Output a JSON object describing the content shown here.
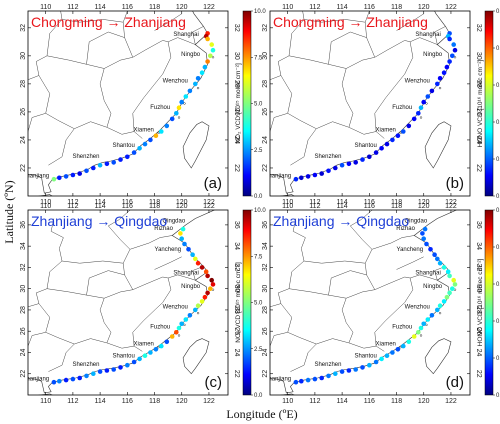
{
  "figure": {
    "xlabel": "Longitude (ºE)",
    "ylabel": "Latitude (ºN)"
  },
  "chart_data": [
    {
      "id": "a",
      "type": "map-scatter",
      "panel_label": "(a)",
      "route": {
        "from": "Chongming",
        "arrow": "→",
        "to": "Zhanjiang",
        "color": "#e8161b"
      },
      "x_ticks": [
        110,
        112,
        114,
        116,
        118,
        120,
        122
      ],
      "y_ticks": [
        22,
        24,
        26,
        28,
        30,
        32
      ],
      "xlim": [
        108.7,
        123.4
      ],
      "ylim": [
        20.0,
        33.2
      ],
      "cities": [
        {
          "name": "Shanghai",
          "lon": 121.4,
          "lat": 31.3
        },
        {
          "name": "Ningbo",
          "lon": 121.5,
          "lat": 29.9
        },
        {
          "name": "Wenzhou",
          "lon": 120.6,
          "lat": 28.0
        },
        {
          "name": "Fuzhou",
          "lon": 119.3,
          "lat": 26.1
        },
        {
          "name": "Xiamen",
          "lon": 118.1,
          "lat": 24.5
        },
        {
          "name": "Shantou",
          "lon": 116.7,
          "lat": 23.4
        },
        {
          "name": "Shenzhen",
          "lon": 114.1,
          "lat": 22.6
        },
        {
          "name": "Zhanjiang",
          "lon": 110.4,
          "lat": 21.2
        }
      ],
      "colorbar": {
        "min": 0,
        "max": 10,
        "ticks": [
          "0.0",
          "2.5",
          "5.0",
          "7.5",
          "10.0"
        ],
        "label": "NO₂ VCD [10¹⁵ molec cm⁻²]"
      },
      "points": [
        [
          121.9,
          31.6,
          8.5
        ],
        [
          121.8,
          31.4,
          9.5
        ],
        [
          121.9,
          31.2,
          7.0
        ],
        [
          122.2,
          30.8,
          6.0
        ],
        [
          122.3,
          30.4,
          4.0
        ],
        [
          122.1,
          30.0,
          5.5
        ],
        [
          121.9,
          29.6,
          7.5
        ],
        [
          121.7,
          29.2,
          3.0
        ],
        [
          121.5,
          28.8,
          3.5
        ],
        [
          121.2,
          28.4,
          2.5
        ],
        [
          121.0,
          28.0,
          3.0
        ],
        [
          120.6,
          27.5,
          2.5
        ],
        [
          120.3,
          27.1,
          3.5
        ],
        [
          120.0,
          26.7,
          2.5
        ],
        [
          119.8,
          26.3,
          6.5
        ],
        [
          119.6,
          25.9,
          3.0
        ],
        [
          119.3,
          25.5,
          2.0
        ],
        [
          118.9,
          25.0,
          2.5
        ],
        [
          118.5,
          24.6,
          3.5
        ],
        [
          118.1,
          24.3,
          7.0
        ],
        [
          117.7,
          24.0,
          2.0
        ],
        [
          117.3,
          23.7,
          2.5
        ],
        [
          116.9,
          23.4,
          3.0
        ],
        [
          116.5,
          23.1,
          2.0
        ],
        [
          116.0,
          22.8,
          1.5
        ],
        [
          115.5,
          22.6,
          1.5
        ],
        [
          115.0,
          22.4,
          2.0
        ],
        [
          114.5,
          22.3,
          1.5
        ],
        [
          114.0,
          22.2,
          3.0
        ],
        [
          113.5,
          22.0,
          1.5
        ],
        [
          113.0,
          21.8,
          2.0
        ],
        [
          112.5,
          21.6,
          1.0
        ],
        [
          112.0,
          21.5,
          1.5
        ],
        [
          111.5,
          21.4,
          2.0
        ],
        [
          111.0,
          21.3,
          1.5
        ],
        [
          110.6,
          21.2,
          5.0
        ]
      ]
    },
    {
      "id": "b",
      "type": "map-scatter",
      "panel_label": "(b)",
      "route": {
        "from": "Chongming",
        "arrow": "→",
        "to": "Zhanjiang",
        "color": "#e8161b"
      },
      "x_ticks": [
        110,
        112,
        114,
        116,
        118,
        120,
        122
      ],
      "y_ticks": [
        22,
        24,
        26,
        28,
        30,
        32
      ],
      "xlim": [
        108.7,
        123.4
      ],
      "ylim": [
        20.0,
        33.2
      ],
      "cities": [
        {
          "name": "Shanghai",
          "lon": 121.4,
          "lat": 31.3
        },
        {
          "name": "Ningbo",
          "lon": 121.5,
          "lat": 29.9
        },
        {
          "name": "Wenzhou",
          "lon": 120.6,
          "lat": 28.0
        },
        {
          "name": "Fuzhou",
          "lon": 119.3,
          "lat": 26.1
        },
        {
          "name": "Xiamen",
          "lon": 118.1,
          "lat": 24.5
        },
        {
          "name": "Shantou",
          "lon": 116.7,
          "lat": 23.4
        },
        {
          "name": "Shenzhen",
          "lon": 114.1,
          "lat": 22.6
        },
        {
          "name": "Zhanjiang",
          "lon": 110.4,
          "lat": 21.2
        }
      ],
      "colorbar": {
        "min": 0,
        "max": 0.5,
        "ticks": [
          "0.0",
          "0.1",
          "0.2",
          "0.3",
          "0.4",
          "0.5"
        ],
        "label": "HONO VCD [10¹⁶ molec cm⁻²]"
      },
      "points": [
        [
          121.9,
          31.6,
          0.1
        ],
        [
          121.8,
          31.4,
          0.15
        ],
        [
          121.9,
          31.2,
          0.08
        ],
        [
          122.2,
          30.8,
          0.12
        ],
        [
          122.3,
          30.4,
          0.05
        ],
        [
          122.1,
          30.0,
          0.1
        ],
        [
          121.9,
          29.6,
          0.08
        ],
        [
          121.7,
          29.2,
          0.06
        ],
        [
          121.5,
          28.8,
          0.07
        ],
        [
          121.2,
          28.4,
          0.06
        ],
        [
          121.0,
          28.0,
          0.08
        ],
        [
          120.6,
          27.5,
          0.05
        ],
        [
          120.3,
          27.1,
          0.1
        ],
        [
          120.0,
          26.7,
          0.06
        ],
        [
          119.8,
          26.3,
          0.15
        ],
        [
          119.6,
          25.9,
          0.08
        ],
        [
          119.3,
          25.5,
          0.06
        ],
        [
          118.9,
          25.0,
          0.05
        ],
        [
          118.5,
          24.6,
          0.1
        ],
        [
          118.1,
          24.3,
          0.07
        ],
        [
          117.7,
          24.0,
          0.08
        ],
        [
          117.3,
          23.7,
          0.05
        ],
        [
          116.9,
          23.4,
          0.06
        ],
        [
          116.5,
          23.1,
          0.05
        ],
        [
          116.0,
          22.8,
          0.04
        ],
        [
          115.5,
          22.6,
          0.08
        ],
        [
          115.0,
          22.4,
          0.05
        ],
        [
          114.5,
          22.3,
          0.06
        ],
        [
          114.0,
          22.2,
          0.1
        ],
        [
          113.5,
          22.0,
          0.05
        ],
        [
          113.0,
          21.8,
          0.07
        ],
        [
          112.5,
          21.6,
          0.04
        ],
        [
          112.0,
          21.5,
          0.06
        ],
        [
          111.5,
          21.4,
          0.05
        ],
        [
          111.0,
          21.3,
          0.04
        ],
        [
          110.6,
          21.2,
          0.08
        ]
      ]
    },
    {
      "id": "c",
      "type": "map-scatter",
      "panel_label": "(c)",
      "route": {
        "from": "Zhanjiang",
        "arrow": "→",
        "to": "Qingdao",
        "color": "#1f3fd6"
      },
      "x_ticks": [
        110,
        112,
        114,
        116,
        118,
        120,
        122
      ],
      "y_ticks": [
        22,
        24,
        26,
        28,
        30,
        32,
        34,
        36
      ],
      "xlim": [
        108.7,
        123.4
      ],
      "ylim": [
        20.0,
        37.4
      ],
      "cities": [
        {
          "name": "Qingdao",
          "lon": 120.4,
          "lat": 36.1
        },
        {
          "name": "Rizhao",
          "lon": 119.5,
          "lat": 35.4
        },
        {
          "name": "Yancheng",
          "lon": 120.1,
          "lat": 33.4
        },
        {
          "name": "Shanghai",
          "lon": 121.4,
          "lat": 31.2
        },
        {
          "name": "Ningbo",
          "lon": 121.5,
          "lat": 29.9
        },
        {
          "name": "Wenzhou",
          "lon": 120.6,
          "lat": 28.0
        },
        {
          "name": "Fuzhou",
          "lon": 119.3,
          "lat": 26.1
        },
        {
          "name": "Xiamen",
          "lon": 118.1,
          "lat": 24.5
        },
        {
          "name": "Shantou",
          "lon": 116.7,
          "lat": 23.4
        },
        {
          "name": "Shenzhen",
          "lon": 114.1,
          "lat": 22.6
        },
        {
          "name": "Zhanjiang",
          "lon": 110.4,
          "lat": 21.2
        }
      ],
      "colorbar": {
        "min": 0,
        "max": 10,
        "ticks": [
          "0.0",
          "2.5",
          "5.0",
          "7.5",
          "10.0"
        ],
        "label": "NO₂ VCD [10¹⁵ molec cm⁻²]"
      },
      "points": [
        [
          110.6,
          21.2,
          2.0
        ],
        [
          111.0,
          21.3,
          2.5
        ],
        [
          111.5,
          21.4,
          1.5
        ],
        [
          112.0,
          21.5,
          2.0
        ],
        [
          112.5,
          21.6,
          1.5
        ],
        [
          113.0,
          21.8,
          2.5
        ],
        [
          113.5,
          22.0,
          3.0
        ],
        [
          114.0,
          22.2,
          2.0
        ],
        [
          114.5,
          22.3,
          1.5
        ],
        [
          115.0,
          22.4,
          2.0
        ],
        [
          115.5,
          22.6,
          1.5
        ],
        [
          116.0,
          22.8,
          2.5
        ],
        [
          116.5,
          23.1,
          2.0
        ],
        [
          116.9,
          23.4,
          3.0
        ],
        [
          117.3,
          23.7,
          4.0
        ],
        [
          117.7,
          24.0,
          3.0
        ],
        [
          118.1,
          24.3,
          2.5
        ],
        [
          118.5,
          24.6,
          3.5
        ],
        [
          118.9,
          25.0,
          2.0
        ],
        [
          119.3,
          25.5,
          7.0
        ],
        [
          119.6,
          25.9,
          8.0
        ],
        [
          119.8,
          26.3,
          4.0
        ],
        [
          120.0,
          26.7,
          3.0
        ],
        [
          120.3,
          27.1,
          3.5
        ],
        [
          120.6,
          27.5,
          2.5
        ],
        [
          121.0,
          28.0,
          3.0
        ],
        [
          121.2,
          28.4,
          5.5
        ],
        [
          121.5,
          28.8,
          6.0
        ],
        [
          121.7,
          29.2,
          8.5
        ],
        [
          121.9,
          29.6,
          9.5
        ],
        [
          122.1,
          30.0,
          7.0
        ],
        [
          122.3,
          30.4,
          9.0
        ],
        [
          122.2,
          30.8,
          10.0
        ],
        [
          121.9,
          31.2,
          9.5
        ],
        [
          121.8,
          31.6,
          8.0
        ],
        [
          121.5,
          32.0,
          9.5
        ],
        [
          121.2,
          32.4,
          8.5
        ],
        [
          121.0,
          32.8,
          6.0
        ],
        [
          120.8,
          33.2,
          3.0
        ],
        [
          120.5,
          33.7,
          2.0
        ],
        [
          120.2,
          34.2,
          2.5
        ],
        [
          120.0,
          34.7,
          3.0
        ],
        [
          119.9,
          35.2,
          6.5
        ],
        [
          120.1,
          35.6,
          4.0
        ]
      ]
    },
    {
      "id": "d",
      "type": "map-scatter",
      "panel_label": "(d)",
      "route": {
        "from": "Zhanjiang",
        "arrow": "→",
        "to": "Qingdao",
        "color": "#1f3fd6"
      },
      "x_ticks": [
        110,
        112,
        114,
        116,
        118,
        120,
        122
      ],
      "y_ticks": [
        22,
        24,
        26,
        28,
        30,
        32,
        34,
        36
      ],
      "xlim": [
        108.7,
        123.4
      ],
      "ylim": [
        20.0,
        37.4
      ],
      "cities": [
        {
          "name": "Qingdao",
          "lon": 120.4,
          "lat": 36.1
        },
        {
          "name": "Rizhao",
          "lon": 119.5,
          "lat": 35.4
        },
        {
          "name": "Yancheng",
          "lon": 120.1,
          "lat": 33.4
        },
        {
          "name": "Shanghai",
          "lon": 121.4,
          "lat": 31.2
        },
        {
          "name": "Ningbo",
          "lon": 121.5,
          "lat": 29.9
        },
        {
          "name": "Wenzhou",
          "lon": 120.6,
          "lat": 28.0
        },
        {
          "name": "Fuzhou",
          "lon": 119.3,
          "lat": 26.1
        },
        {
          "name": "Xiamen",
          "lon": 118.1,
          "lat": 24.5
        },
        {
          "name": "Shantou",
          "lon": 116.7,
          "lat": 23.4
        },
        {
          "name": "Shenzhen",
          "lon": 114.1,
          "lat": 22.6
        },
        {
          "name": "Zhanjiang",
          "lon": 110.4,
          "lat": 21.2
        }
      ],
      "colorbar": {
        "min": 0,
        "max": 0.5,
        "ticks": [
          "0.0",
          "0.1",
          "0.2",
          "0.3",
          "0.4",
          "0.5"
        ],
        "label": "HONO VCD [10¹⁶ molec cm⁻²]"
      },
      "points": [
        [
          110.6,
          21.2,
          0.1
        ],
        [
          111.0,
          21.3,
          0.08
        ],
        [
          111.5,
          21.4,
          0.12
        ],
        [
          112.0,
          21.5,
          0.1
        ],
        [
          112.5,
          21.6,
          0.08
        ],
        [
          113.0,
          21.8,
          0.12
        ],
        [
          113.5,
          22.0,
          0.15
        ],
        [
          114.0,
          22.2,
          0.1
        ],
        [
          114.5,
          22.3,
          0.08
        ],
        [
          115.0,
          22.4,
          0.12
        ],
        [
          115.5,
          22.6,
          0.1
        ],
        [
          116.0,
          22.8,
          0.15
        ],
        [
          116.5,
          23.1,
          0.12
        ],
        [
          116.9,
          23.4,
          0.18
        ],
        [
          117.3,
          23.7,
          0.15
        ],
        [
          117.7,
          24.0,
          0.12
        ],
        [
          118.1,
          24.3,
          0.1
        ],
        [
          118.5,
          24.6,
          0.15
        ],
        [
          118.9,
          25.0,
          0.2
        ],
        [
          119.3,
          25.5,
          0.3
        ],
        [
          119.6,
          25.9,
          0.25
        ],
        [
          119.8,
          26.3,
          0.2
        ],
        [
          120.0,
          26.7,
          0.15
        ],
        [
          120.3,
          27.1,
          0.18
        ],
        [
          120.6,
          27.5,
          0.12
        ],
        [
          121.0,
          28.0,
          0.15
        ],
        [
          121.2,
          28.4,
          0.2
        ],
        [
          121.5,
          28.8,
          0.18
        ],
        [
          121.7,
          29.2,
          0.25
        ],
        [
          121.9,
          29.6,
          0.22
        ],
        [
          122.1,
          30.0,
          0.2
        ],
        [
          122.3,
          30.4,
          0.25
        ],
        [
          122.2,
          30.8,
          0.3
        ],
        [
          121.9,
          31.2,
          0.22
        ],
        [
          121.8,
          31.6,
          0.18
        ],
        [
          121.5,
          32.0,
          0.2
        ],
        [
          121.2,
          32.4,
          0.15
        ],
        [
          121.0,
          32.8,
          0.12
        ],
        [
          120.8,
          33.2,
          0.1
        ],
        [
          120.5,
          33.7,
          0.08
        ],
        [
          120.2,
          34.2,
          0.1
        ],
        [
          120.0,
          34.7,
          0.12
        ],
        [
          119.9,
          35.2,
          0.1
        ],
        [
          120.1,
          35.6,
          0.12
        ]
      ]
    }
  ]
}
